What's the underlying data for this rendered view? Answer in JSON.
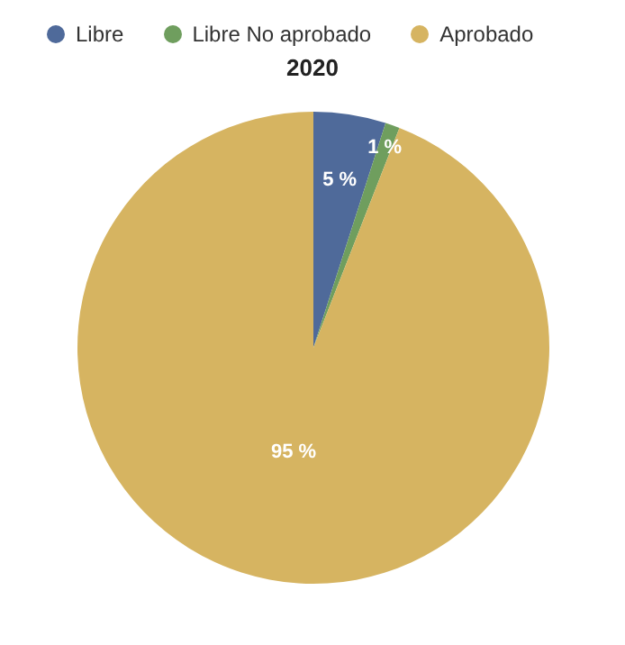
{
  "chart_data": {
    "type": "pie",
    "title": "2020",
    "categories": [
      "Libre",
      "Libre No aprobado",
      "Aprobado"
    ],
    "values": [
      5,
      1,
      95
    ],
    "colors": [
      "#4f6a9a",
      "#6f9e5e",
      "#d6b461"
    ],
    "value_labels": [
      "5 %",
      "1 %",
      "95 %"
    ],
    "legend": "top"
  }
}
